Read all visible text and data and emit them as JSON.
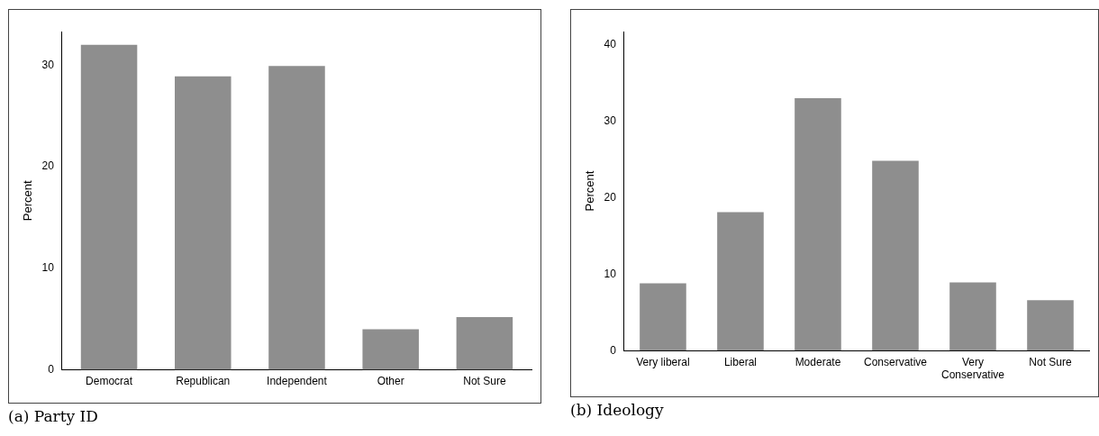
{
  "chart_data": [
    {
      "type": "bar",
      "title": "(a) Party ID",
      "ylabel": "Percent",
      "categories": [
        "Democrat",
        "Republican",
        "Independent",
        "Other",
        "Not Sure"
      ],
      "values": [
        32.0,
        28.9,
        29.9,
        4.0,
        5.2
      ],
      "color": "#8e8e8e",
      "ylim": [
        0,
        33.3
      ],
      "yticks": [
        0,
        10,
        20,
        30
      ],
      "grid": false,
      "legend": false
    },
    {
      "type": "bar",
      "title": "(b) Ideology",
      "ylabel": "Percent",
      "categories": [
        "Very liberal",
        "Liberal",
        "Moderate",
        "Conservative",
        "Very Conservative",
        "Not Sure"
      ],
      "values": [
        8.8,
        18.1,
        33.0,
        24.8,
        8.9,
        6.6
      ],
      "color": "#8e8e8e",
      "ylim": [
        0,
        41.7
      ],
      "yticks": [
        0,
        10,
        20,
        30,
        40
      ],
      "grid": false,
      "legend": false
    }
  ]
}
